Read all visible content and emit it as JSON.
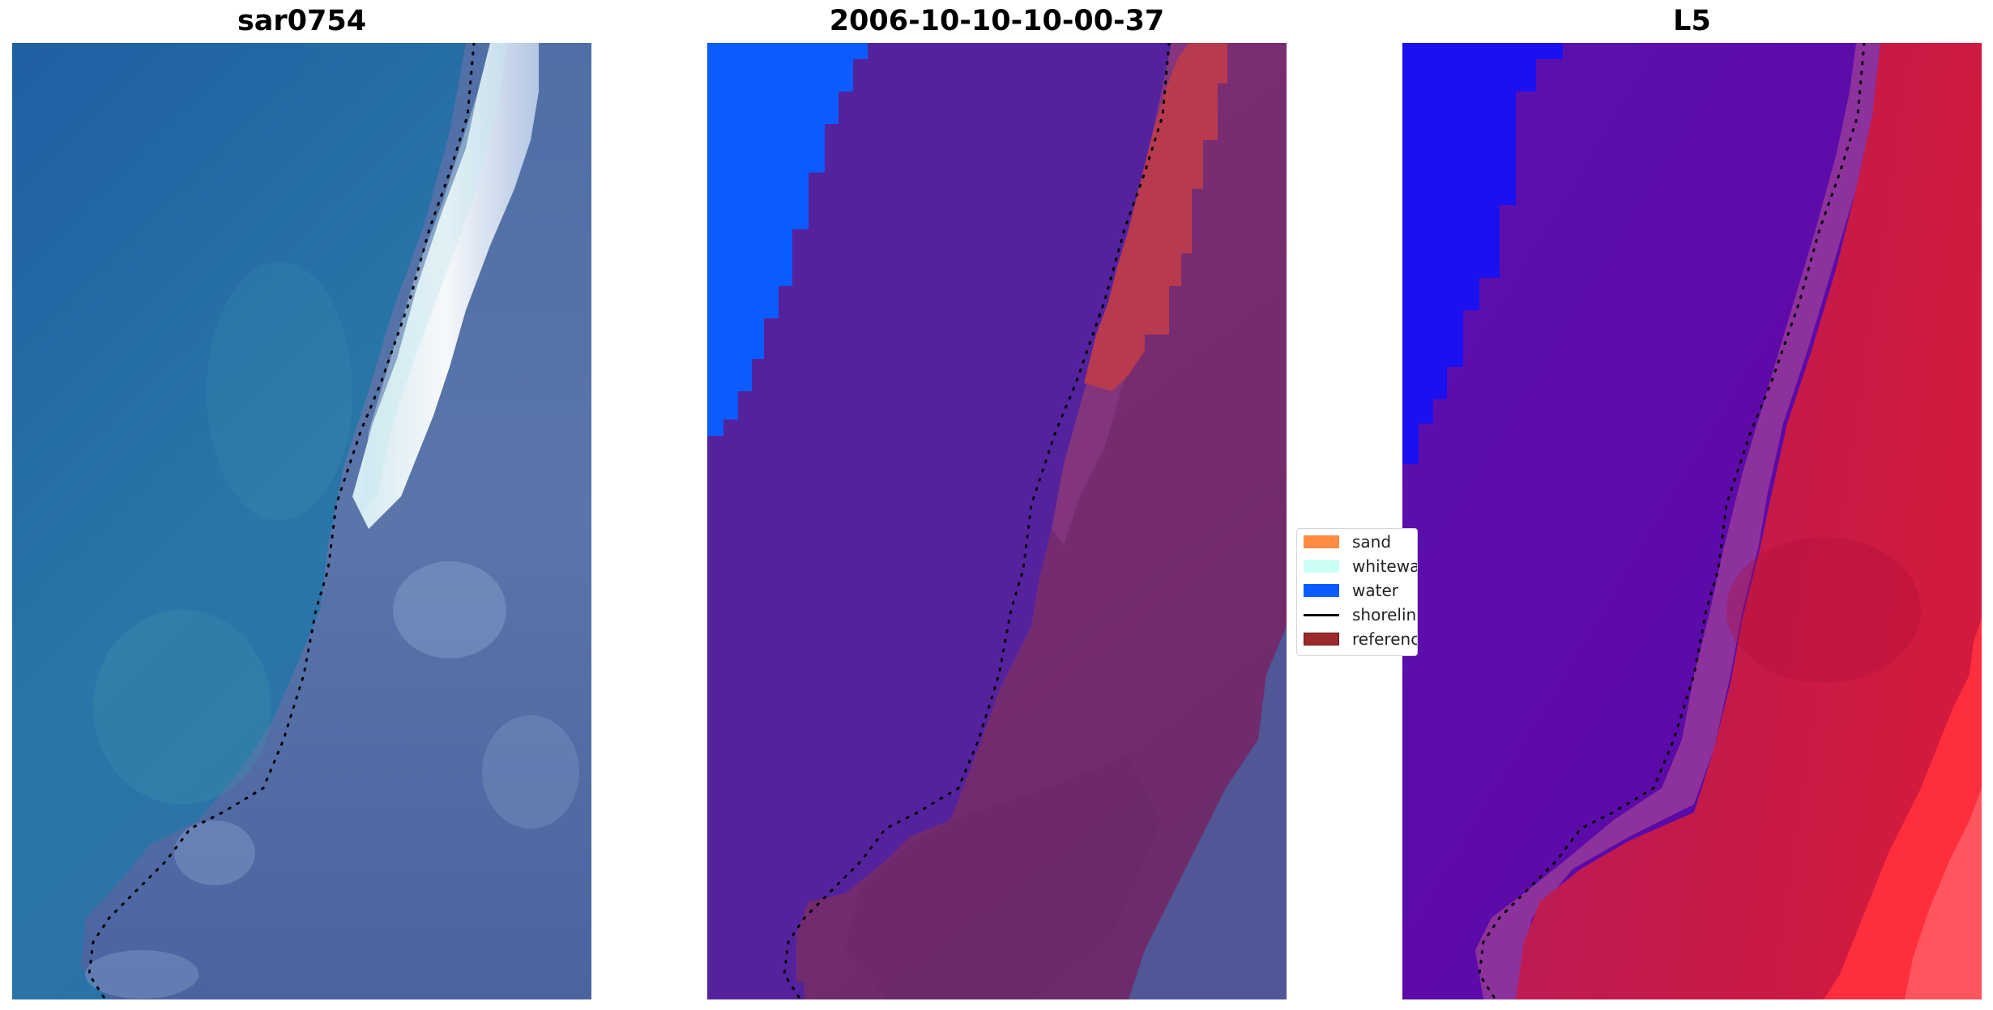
{
  "figure": {
    "panels": [
      {
        "title": "sar0754"
      },
      {
        "title": "2006-10-10-10-00-37"
      },
      {
        "title": "L5"
      }
    ]
  },
  "legend": {
    "items": [
      {
        "label": "sand",
        "color": "#ff8c42",
        "kind": "patch"
      },
      {
        "label": "whitewater",
        "color": "#ccfff7",
        "kind": "patch"
      },
      {
        "label": "water",
        "color": "#0a5cff",
        "kind": "patch"
      },
      {
        "label": "shoreline",
        "color": "#000000",
        "kind": "line"
      },
      {
        "label": "reference",
        "color": "#9b2a2a",
        "kind": "patch"
      }
    ]
  },
  "colors": {
    "rgb_water": "#2a5fa0",
    "rgb_whitewater": "#eef6ff",
    "rgb_land": "#5b76a8",
    "class_water_area": "#5523a0",
    "class_water_pixels": "#0a5cff",
    "class_land": "#772b72",
    "class_reference": "#b83a4e",
    "prob_water": "#5a0aa8",
    "prob_land": "#c41a48",
    "prob_high_land": "#ff3b4a",
    "shoreline": "#000000"
  }
}
